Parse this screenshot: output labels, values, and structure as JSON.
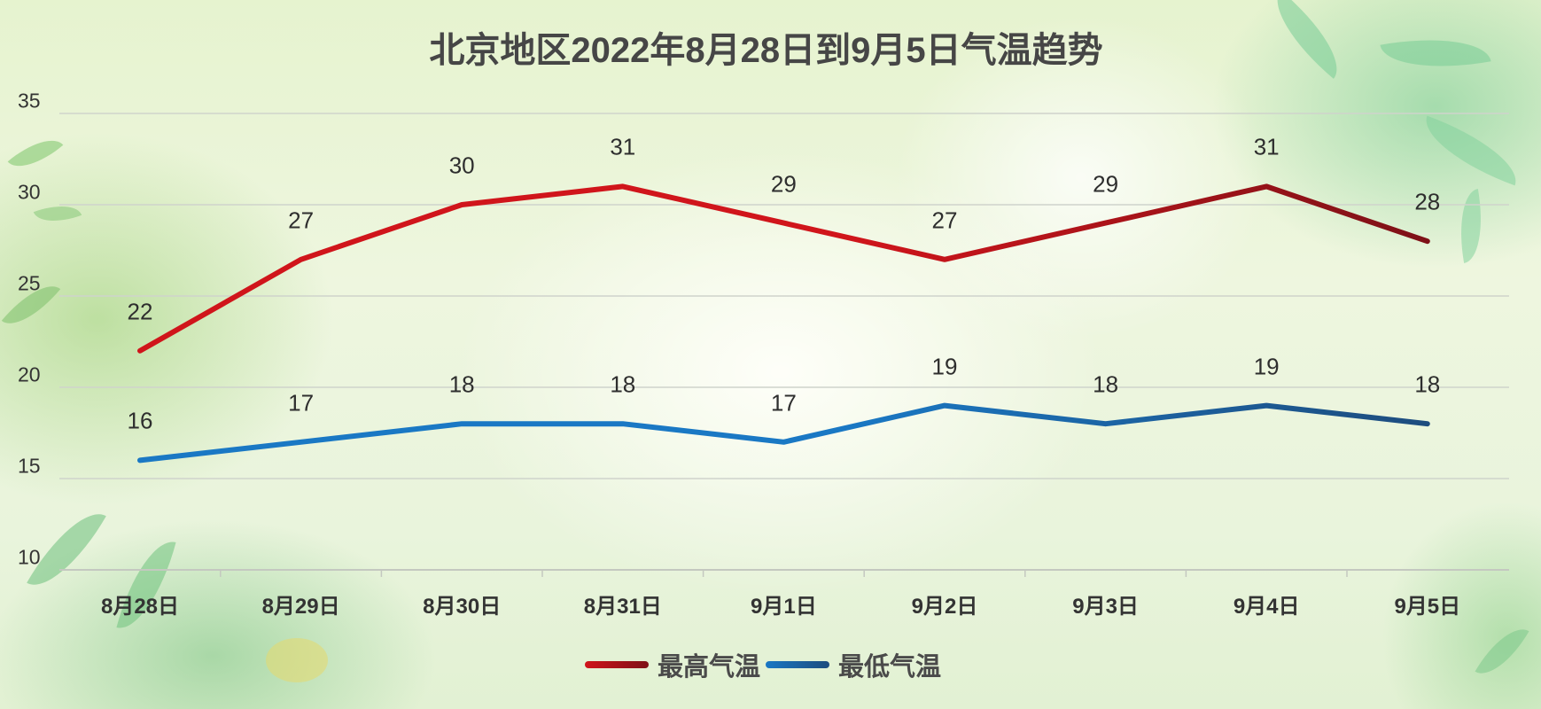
{
  "title": "北京地区2022年8月28日到9月5日气温趋势",
  "colors": {
    "high_start": "#d0151b",
    "high_end": "#7e1117",
    "low_start": "#1a78c4",
    "low_end": "#1d4c7e",
    "grid": "#cfd3cc",
    "text": "#333333"
  },
  "legend": {
    "items": [
      {
        "label": "最高气温",
        "series": "high"
      },
      {
        "label": "最低气温",
        "series": "low"
      }
    ]
  },
  "chart_data": {
    "type": "line",
    "title": "北京地区2022年8月28日到9月5日气温趋势",
    "xlabel": "",
    "ylabel": "",
    "categories": [
      "8月28日",
      "8月29日",
      "8月30日",
      "8月31日",
      "9月1日",
      "9月2日",
      "9月3日",
      "9月4日",
      "9月5日"
    ],
    "series": [
      {
        "name": "最高气温",
        "values": [
          22,
          27,
          30,
          31,
          29,
          27,
          29,
          31,
          28
        ]
      },
      {
        "name": "最低气温",
        "values": [
          16,
          17,
          18,
          18,
          17,
          19,
          18,
          19,
          18
        ]
      }
    ],
    "ylim": [
      10,
      35
    ],
    "yticks": [
      10,
      15,
      20,
      25,
      30,
      35
    ],
    "grid": true,
    "data_labels": true,
    "legend_position": "bottom"
  }
}
